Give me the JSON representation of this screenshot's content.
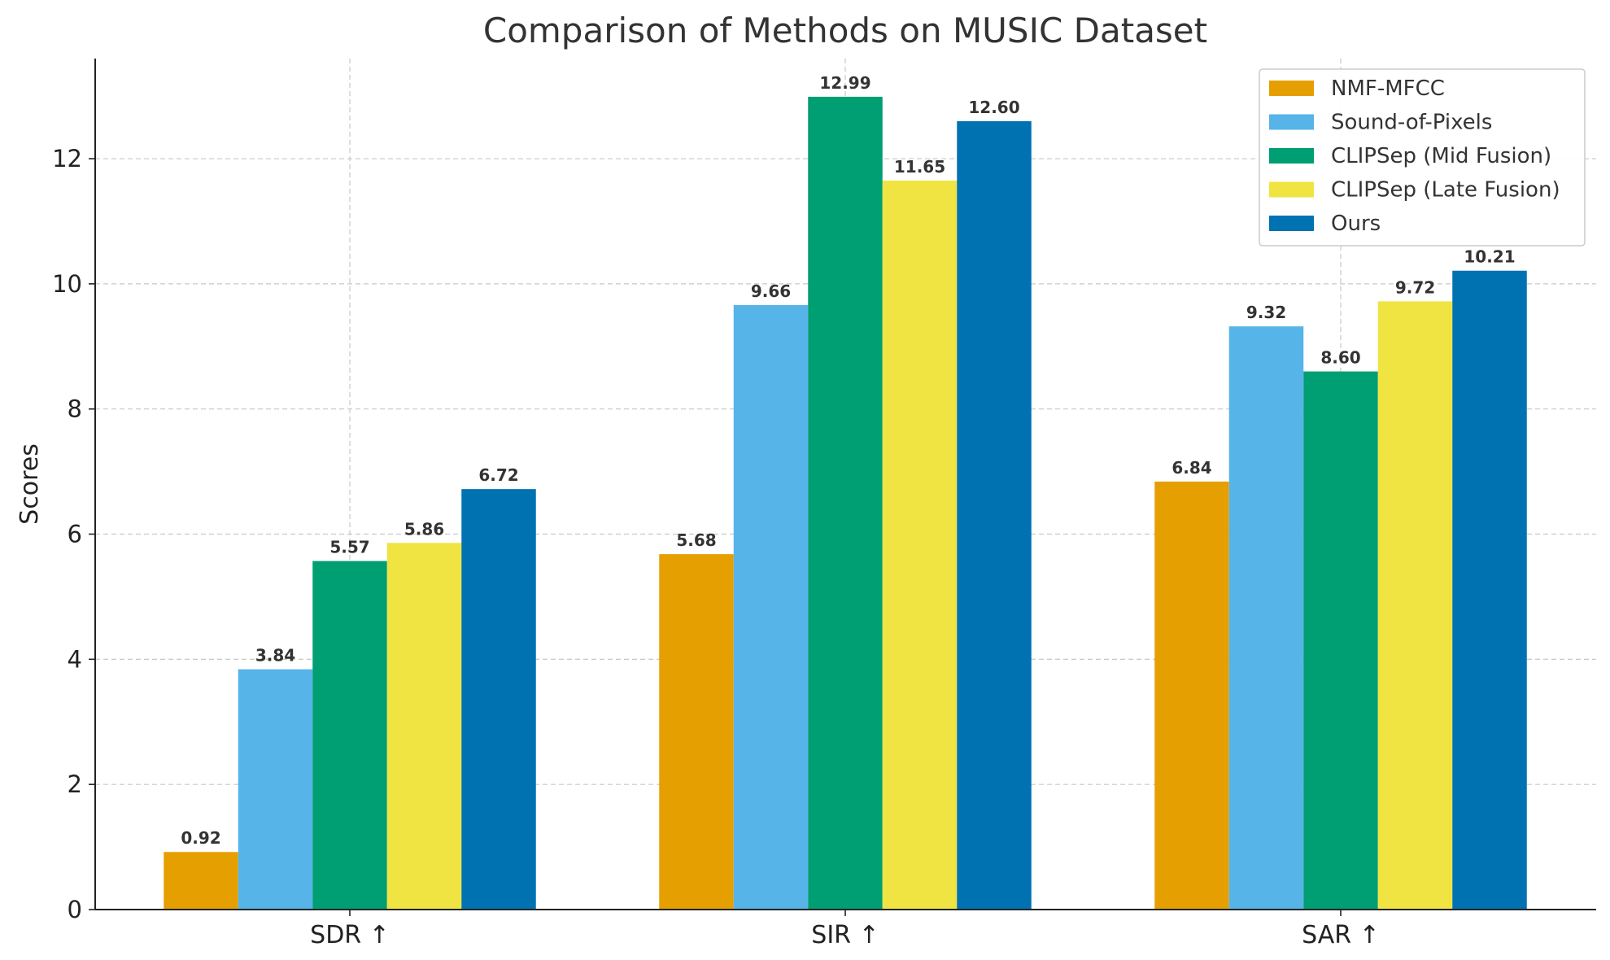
{
  "chart_data": {
    "type": "bar",
    "title": "Comparison of Methods on MUSIC Dataset",
    "ylabel": "Scores",
    "categories": [
      "SDR ↑",
      "SIR ↑",
      "SAR ↑"
    ],
    "ylim": [
      0,
      13.6
    ],
    "yticks": [
      0,
      2,
      4,
      6,
      8,
      10,
      12
    ],
    "grid": true,
    "legend_position": "top-right",
    "series": [
      {
        "name": "NMF-MFCC",
        "color": "#E69F00",
        "values": [
          0.92,
          5.68,
          6.84
        ],
        "labels": [
          "0.92",
          "5.68",
          "6.84"
        ]
      },
      {
        "name": "Sound-of-Pixels",
        "color": "#56B4E9",
        "values": [
          3.84,
          9.66,
          9.32
        ],
        "labels": [
          "3.84",
          "9.66",
          "9.32"
        ]
      },
      {
        "name": "CLIPSep (Mid Fusion)",
        "color": "#009E73",
        "values": [
          5.57,
          12.99,
          8.6
        ],
        "labels": [
          "5.57",
          "12.99",
          "8.60"
        ]
      },
      {
        "name": "CLIPSep (Late Fusion)",
        "color": "#F0E442",
        "values": [
          5.86,
          11.65,
          9.72
        ],
        "labels": [
          "5.86",
          "11.65",
          "9.72"
        ]
      },
      {
        "name": "Ours",
        "color": "#0072B2",
        "values": [
          6.72,
          12.6,
          10.21
        ],
        "labels": [
          "6.72",
          "12.60",
          "10.21"
        ]
      }
    ]
  }
}
